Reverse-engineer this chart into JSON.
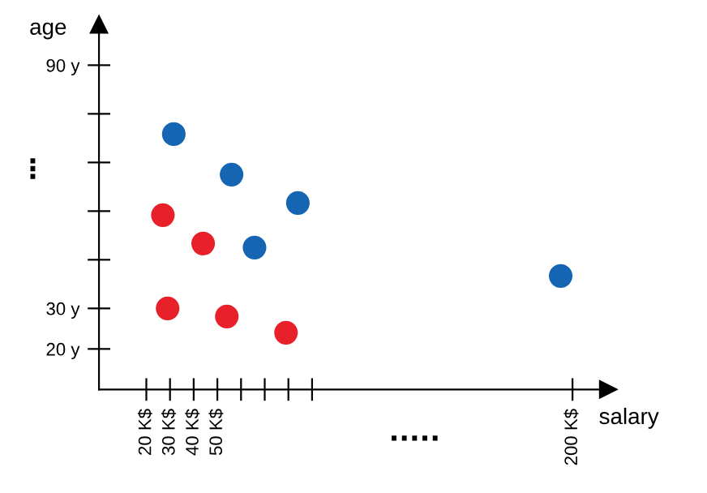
{
  "chart_data": {
    "type": "scatter",
    "xlabel": "salary",
    "ylabel": "age",
    "xlim": [
      0,
      215
    ],
    "ylim": [
      10,
      100
    ],
    "xticks": [
      {
        "value": 20,
        "label": "20 K$"
      },
      {
        "value": 30,
        "label": "30 K$"
      },
      {
        "value": 40,
        "label": "40 K$"
      },
      {
        "value": 50,
        "label": "50 K$"
      },
      {
        "value": 60,
        "label": null
      },
      {
        "value": 70,
        "label": null
      },
      {
        "value": 80,
        "label": null
      },
      {
        "value": 90,
        "label": null
      },
      {
        "value": 200,
        "label": "200 K$"
      }
    ],
    "yticks": [
      {
        "value": 20,
        "label": "20 y"
      },
      {
        "value": 30,
        "label": "30 y"
      },
      {
        "value": 42,
        "label": null
      },
      {
        "value": 54,
        "label": null
      },
      {
        "value": 66,
        "label": null
      },
      {
        "value": 78,
        "label": null
      },
      {
        "value": 90,
        "label": "90 y"
      }
    ],
    "marker": "circle",
    "grid": false,
    "legend": false,
    "annotations": [
      "⋮",
      "....."
    ],
    "series": [
      {
        "color": "#1565b3",
        "x": [
          31.6,
          56,
          65.7,
          84,
          195
        ],
        "values": [
          73,
          63,
          45,
          56,
          38
        ]
      },
      {
        "color": "#e8202a",
        "x": [
          27,
          44,
          29,
          54,
          79
        ],
        "values": [
          53,
          46,
          30,
          28,
          24
        ]
      }
    ]
  }
}
